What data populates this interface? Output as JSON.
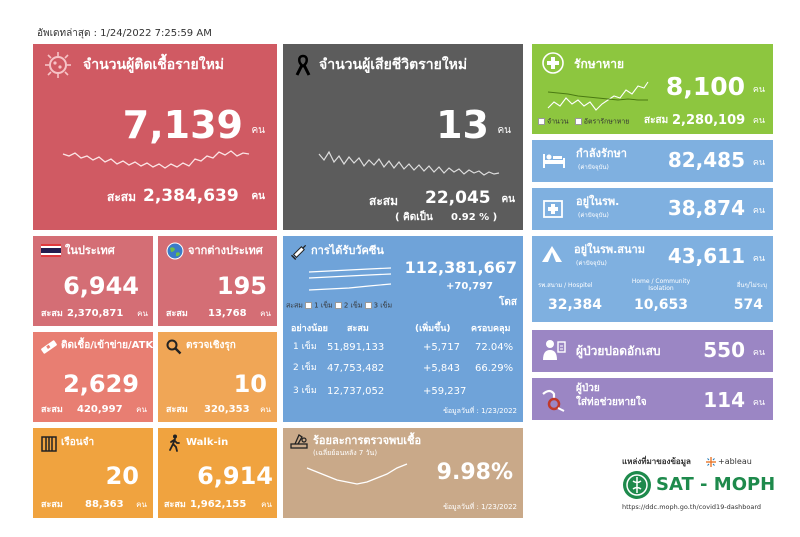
{
  "header": {
    "updated_label": "อัพเดทล่าสุด : 1/24/2022 7:25:59 AM"
  },
  "unit": "คน",
  "new_cases": {
    "title": "จำนวนผู้ติดเชื้อรายใหม่",
    "value": "7,139",
    "total_label": "สะสม",
    "total": "2,384,639",
    "color": "#d05a63"
  },
  "new_deaths": {
    "title": "จำนวนผู้เสียชีวิตรายใหม่",
    "value": "13",
    "total_label": "สะสม",
    "total": "22,045",
    "percent_label": "( คิดเป็น",
    "percent": "0.92 % )",
    "color": "#5c5c5c"
  },
  "recovered": {
    "title": "รักษาหาย",
    "value": "8,100",
    "legend_count": "จำนวน",
    "legend_rate": "อัตรารักษาหาย",
    "total_label": "สะสม",
    "total": "2,280,109",
    "color": "#8dc63f"
  },
  "in_treatment": {
    "title": "กำลังรักษา",
    "subtitle": "(ค่าปัจจุบัน)",
    "value": "82,485",
    "color": "#7fb0e0"
  },
  "in_hospital": {
    "title": "อยู่ในรพ.",
    "subtitle": "(ค่าปัจจุบัน)",
    "value": "38,874",
    "color": "#7fb0e0"
  },
  "field_hospital": {
    "title": "อยู่ในรพ.สนาม",
    "subtitle": "(ค่าปัจจุบัน)",
    "value": "43,611",
    "col1_label": "รพ.สนาม / Hospitel",
    "col1_value": "32,384",
    "col2_label": "Home / Community Isolation",
    "col2_value": "10,653",
    "col3_label": "อื่นๆ/ไม่ระบุ",
    "col3_value": "574",
    "color": "#7fb0e0"
  },
  "pneumonia": {
    "title": "ผู้ป่วยปอดอักเสบ",
    "value": "550",
    "color": "#9b86c4"
  },
  "ventilator": {
    "title_line1": "ผู้ป่วย",
    "title_line2": "ใส่ท่อช่วยหายใจ",
    "value": "114",
    "color": "#9b86c4"
  },
  "domestic": {
    "title": "ในประเทศ",
    "value": "6,944",
    "total_label": "สะสม",
    "total": "2,370,871",
    "color": "#d46e75"
  },
  "imported": {
    "title": "จากต่างประเทศ",
    "value": "195",
    "total_label": "สะสม",
    "total": "13,768",
    "color": "#d46e75"
  },
  "prison_atk": {
    "title": "ติดเชื้อ/เข้าข่าย/ATK",
    "value": "2,629",
    "total_label": "สะสม",
    "total": "420,997",
    "color": "#e87e72"
  },
  "active_screen": {
    "title": "ตรวจเชิงรุก",
    "value": "10",
    "total_label": "สะสม",
    "total": "320,353",
    "color": "#f0a656"
  },
  "prison": {
    "title": "เรือนจำ",
    "value": "20",
    "total_label": "สะสม",
    "total": "88,363",
    "color": "#f0a33f"
  },
  "walkin": {
    "title": "Walk-in",
    "value": "6,914",
    "total_label": "สะสม",
    "total": "1,962,155",
    "color": "#f0a33f"
  },
  "vaccine": {
    "title": "การได้รับวัคซีน",
    "total": "112,381,667",
    "increase": "+70,797",
    "unit": "โดส",
    "legend_label": "สะสม",
    "legend_1": "1 เข็ม",
    "legend_2": "2 เข็ม",
    "legend_3": "3 เข็ม",
    "head_min": "อย่างน้อย",
    "head_total": "สะสม",
    "head_inc": "(เพิ่มขึ้น)",
    "head_cov": "ครอบคลุม",
    "rows": [
      {
        "dose": "1 เข็ม",
        "total": "51,891,133",
        "inc": "+5,717",
        "cov": "72.04%"
      },
      {
        "dose": "2 เข็ม",
        "total": "47,753,482",
        "inc": "+5,843",
        "cov": "66.29%"
      },
      {
        "dose": "3 เข็ม",
        "total": "12,737,052",
        "inc": "+59,237",
        "cov": ""
      }
    ],
    "date_note": "ข้อมูลวันที่ : 1/23/2022",
    "color": "#6fa3d9"
  },
  "positivity": {
    "title": "ร้อยละการตรวจพบเชื้อ",
    "subtitle": "(เฉลี่ยย้อนหลัง 7 วัน)",
    "value": "9.98%",
    "date_note": "ข้อมูลวันที่ : 1/23/2022",
    "color": "#c9a989"
  },
  "source": {
    "label": "แหล่งที่มาของข้อมูล",
    "tableau": "+ableau",
    "brand": "SAT - MOPH",
    "url": "https://ddc.moph.go.th/covid19-dashboard"
  }
}
